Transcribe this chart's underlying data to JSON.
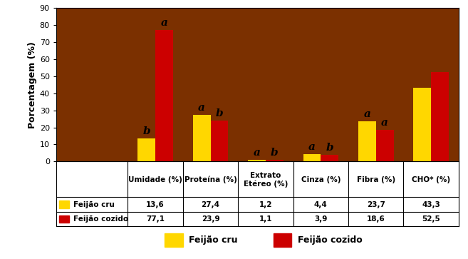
{
  "categories": [
    "Umidade (%)",
    "Proteína (%)",
    "Extrato\nEtéreo (%)",
    "Cinza (%)",
    "Fibra (%)",
    "CHO* (%)"
  ],
  "feijao_cru": [
    13.6,
    27.4,
    1.2,
    4.4,
    23.7,
    43.3
  ],
  "feijao_cozido": [
    77.1,
    23.9,
    1.1,
    3.9,
    18.6,
    52.5
  ],
  "color_cru": "#FFD700",
  "color_cozido": "#CC0000",
  "background_color": "#7B3000",
  "ylim": [
    0,
    90
  ],
  "yticks": [
    0,
    10,
    20,
    30,
    40,
    50,
    60,
    70,
    80,
    90
  ],
  "ylabel": "Porcentagem (%)",
  "annotations_cru": [
    "b",
    "a",
    "a",
    "a",
    "a",
    ""
  ],
  "annotations_cozido": [
    "a",
    "b",
    "b",
    "b",
    "a",
    ""
  ],
  "table_values_cru": [
    "13,6",
    "27,4",
    "1,2",
    "4,4",
    "23,7",
    "43,3"
  ],
  "table_values_cozido": [
    "77,1",
    "23,9",
    "1,1",
    "3,9",
    "18,6",
    "52,5"
  ],
  "legend_cru": "Feijão cru",
  "legend_cozido": "Feijão cozido",
  "row_label_cru": "Feijão cru",
  "row_label_cozido": "Feijão cozido"
}
